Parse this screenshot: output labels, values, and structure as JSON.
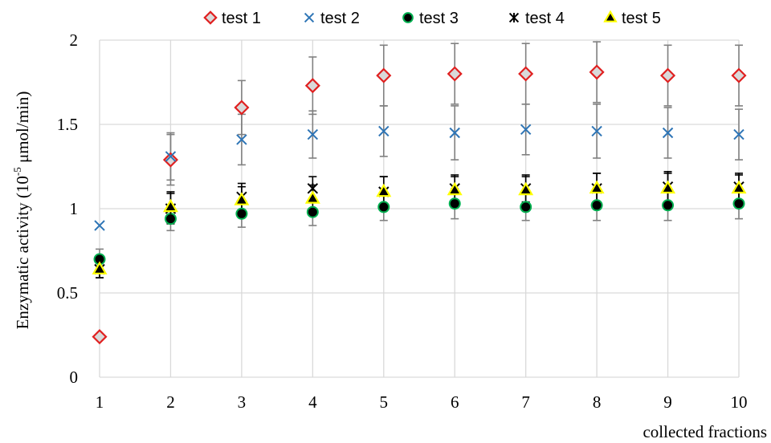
{
  "chart_data": {
    "type": "scatter",
    "title": "",
    "xlabel": "collected fractions",
    "ylabel_main": "Enzymatic activity (10",
    "ylabel_sup": "-5",
    "ylabel_unit": " μmol/min)",
    "x": [
      1,
      2,
      3,
      4,
      5,
      6,
      7,
      8,
      9,
      10
    ],
    "x_tick_labels": [
      "1",
      "2",
      "3",
      "4",
      "5",
      "6",
      "7",
      "8",
      "9",
      "10"
    ],
    "y_tick_labels": [
      "0",
      "0.5",
      "1",
      "1.5",
      "2"
    ],
    "y_ticks": [
      0,
      0.5,
      1,
      1.5,
      2
    ],
    "xlim": [
      1,
      10
    ],
    "ylim": [
      0,
      2
    ],
    "grid": "vertical and horizontal",
    "legend_position": "top",
    "series": [
      {
        "name": "test 1",
        "marker": "diamond",
        "fill": "#d9d9d9",
        "stroke": "#e02020",
        "err_color": "#808080",
        "values": [
          0.24,
          1.29,
          1.6,
          1.73,
          1.79,
          1.8,
          1.8,
          1.81,
          1.79,
          1.79
        ],
        "errors": [
          null,
          0.15,
          0.16,
          0.17,
          0.18,
          0.18,
          0.18,
          0.18,
          0.18,
          0.18
        ]
      },
      {
        "name": "test 2",
        "marker": "x",
        "fill": "none",
        "stroke": "#2e75b6",
        "err_color": "#808080",
        "values": [
          0.9,
          1.31,
          1.41,
          1.44,
          1.46,
          1.45,
          1.47,
          1.46,
          1.45,
          1.44
        ],
        "errors": [
          null,
          0.14,
          0.15,
          0.14,
          0.15,
          0.16,
          0.15,
          0.16,
          0.15,
          0.15
        ]
      },
      {
        "name": "test 3",
        "marker": "circle",
        "fill": "#000000",
        "stroke": "#00b050",
        "err_color": "#808080",
        "values": [
          0.7,
          0.94,
          0.97,
          0.98,
          1.01,
          1.03,
          1.01,
          1.02,
          1.02,
          1.03
        ],
        "errors": [
          0.06,
          0.07,
          0.08,
          0.08,
          0.08,
          0.09,
          0.08,
          0.09,
          0.09,
          0.09
        ]
      },
      {
        "name": "test 4",
        "marker": "star",
        "fill": "none",
        "stroke": "#000000",
        "err_color": "#000000",
        "values": [
          0.64,
          1.0,
          1.07,
          1.12,
          1.1,
          1.12,
          1.12,
          1.12,
          1.13,
          1.13
        ],
        "errors": [
          0.05,
          0.09,
          0.08,
          0.07,
          0.09,
          0.08,
          0.08,
          0.09,
          0.09,
          0.08
        ]
      },
      {
        "name": "test 5",
        "marker": "triangle",
        "fill": "#000000",
        "stroke": "#ffff00",
        "err_color": "#000000",
        "values": [
          0.64,
          1.01,
          1.05,
          1.06,
          1.1,
          1.11,
          1.11,
          1.12,
          1.12,
          1.12
        ],
        "errors": [
          0.05,
          0.09,
          0.08,
          0.08,
          0.09,
          0.08,
          0.08,
          0.09,
          0.09,
          0.08
        ]
      }
    ]
  }
}
